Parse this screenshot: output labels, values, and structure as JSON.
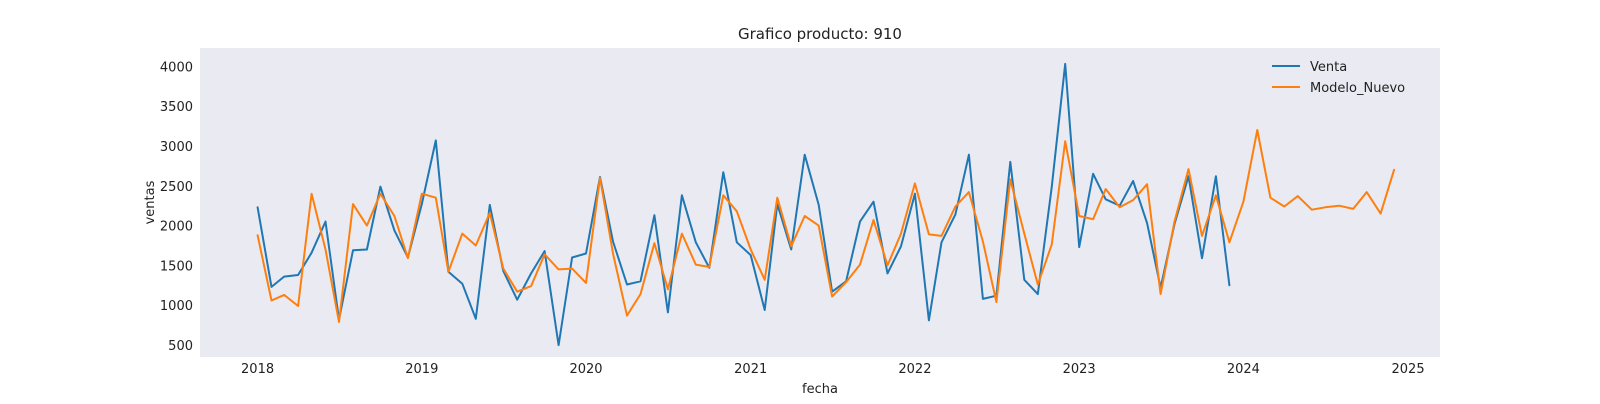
{
  "chart_data": {
    "type": "line",
    "title": "Grafico producto: 910",
    "xlabel": "fecha",
    "ylabel": "ventas",
    "xlim": [
      "2017-08-26",
      "2025-03-13"
    ],
    "ylim": [
      350,
      4230
    ],
    "yticks": [
      500,
      1000,
      1500,
      2000,
      2500,
      3000,
      3500,
      4000
    ],
    "xticks": [
      "2018-01-01",
      "2019-01-01",
      "2020-01-01",
      "2021-01-01",
      "2022-01-01",
      "2023-01-01",
      "2024-01-01",
      "2025-01-01"
    ],
    "xtick_labels": [
      "2018",
      "2019",
      "2020",
      "2021",
      "2022",
      "2023",
      "2024",
      "2025"
    ],
    "grid": false,
    "legend_position": "top-right",
    "background": "#eaeaf2",
    "series": [
      {
        "name": "Venta",
        "color": "#1f77b4",
        "dates": [
          "2018-01-01",
          "2018-02-01",
          "2018-03-01",
          "2018-04-01",
          "2018-05-01",
          "2018-06-01",
          "2018-07-01",
          "2018-08-01",
          "2018-09-01",
          "2018-10-01",
          "2018-11-01",
          "2018-12-01",
          "2019-01-01",
          "2019-02-01",
          "2019-03-01",
          "2019-04-01",
          "2019-05-01",
          "2019-06-01",
          "2019-07-01",
          "2019-08-01",
          "2019-09-01",
          "2019-10-01",
          "2019-11-01",
          "2019-12-01",
          "2020-01-01",
          "2020-02-01",
          "2020-03-01",
          "2020-04-01",
          "2020-05-01",
          "2020-06-01",
          "2020-07-01",
          "2020-08-01",
          "2020-09-01",
          "2020-10-01",
          "2020-11-01",
          "2020-12-01",
          "2021-01-01",
          "2021-02-01",
          "2021-03-01",
          "2021-04-01",
          "2021-05-01",
          "2021-06-01",
          "2021-07-01",
          "2021-08-01",
          "2021-09-01",
          "2021-10-01",
          "2021-11-01",
          "2021-12-01",
          "2022-01-01",
          "2022-02-01",
          "2022-03-01",
          "2022-04-01",
          "2022-05-01",
          "2022-06-01",
          "2022-07-01",
          "2022-08-01",
          "2022-09-01",
          "2022-10-01",
          "2022-11-01",
          "2022-12-01",
          "2023-01-01",
          "2023-02-01",
          "2023-03-01",
          "2023-04-01",
          "2023-05-01",
          "2023-06-01",
          "2023-07-01",
          "2023-08-01",
          "2023-09-01",
          "2023-10-01",
          "2023-11-01",
          "2023-12-01"
        ],
        "values": [
          2230,
          1230,
          1360,
          1380,
          1660,
          2050,
          820,
          1690,
          1700,
          2490,
          1940,
          1600,
          2270,
          3070,
          1420,
          1270,
          830,
          2260,
          1430,
          1070,
          1400,
          1680,
          500,
          1600,
          1650,
          2610,
          1800,
          1260,
          1300,
          2130,
          910,
          2380,
          1790,
          1470,
          2670,
          1790,
          1630,
          940,
          2270,
          1700,
          2890,
          2260,
          1170,
          1300,
          2050,
          2300,
          1400,
          1740,
          2400,
          810,
          1790,
          2140,
          2890,
          1080,
          1120,
          2800,
          1320,
          1140,
          2480,
          4030,
          1730,
          2650,
          2330,
          2250,
          2560,
          2030,
          1220,
          2020,
          2620,
          1590,
          2620,
          1250
        ]
      },
      {
        "name": "Modelo_Nuevo",
        "color": "#ff7f0e",
        "dates": [
          "2018-01-01",
          "2018-02-01",
          "2018-03-01",
          "2018-04-01",
          "2018-05-01",
          "2018-06-01",
          "2018-07-01",
          "2018-08-01",
          "2018-09-01",
          "2018-10-01",
          "2018-11-01",
          "2018-12-01",
          "2019-01-01",
          "2019-02-01",
          "2019-03-01",
          "2019-04-01",
          "2019-05-01",
          "2019-06-01",
          "2019-07-01",
          "2019-08-01",
          "2019-09-01",
          "2019-10-01",
          "2019-11-01",
          "2019-12-01",
          "2020-01-01",
          "2020-02-01",
          "2020-03-01",
          "2020-04-01",
          "2020-05-01",
          "2020-06-01",
          "2020-07-01",
          "2020-08-01",
          "2020-09-01",
          "2020-10-01",
          "2020-11-01",
          "2020-12-01",
          "2021-01-01",
          "2021-02-01",
          "2021-03-01",
          "2021-04-01",
          "2021-05-01",
          "2021-06-01",
          "2021-07-01",
          "2021-08-01",
          "2021-09-01",
          "2021-10-01",
          "2021-11-01",
          "2021-12-01",
          "2022-01-01",
          "2022-02-01",
          "2022-03-01",
          "2022-04-01",
          "2022-05-01",
          "2022-06-01",
          "2022-07-01",
          "2022-08-01",
          "2022-09-01",
          "2022-10-01",
          "2022-11-01",
          "2022-12-01",
          "2023-01-01",
          "2023-02-01",
          "2023-03-01",
          "2023-04-01",
          "2023-05-01",
          "2023-06-01",
          "2023-07-01",
          "2023-08-01",
          "2023-09-01",
          "2023-10-01",
          "2023-11-01",
          "2023-12-01",
          "2024-01-01",
          "2024-02-01",
          "2024-03-01",
          "2024-04-01",
          "2024-05-01",
          "2024-06-01",
          "2024-07-01",
          "2024-08-01",
          "2024-09-01",
          "2024-10-01",
          "2024-11-01",
          "2024-12-01"
        ],
        "values": [
          1880,
          1060,
          1130,
          990,
          2400,
          1700,
          790,
          2270,
          2000,
          2400,
          2120,
          1590,
          2400,
          2350,
          1420,
          1900,
          1750,
          2160,
          1460,
          1170,
          1240,
          1640,
          1450,
          1460,
          1280,
          2600,
          1650,
          870,
          1140,
          1780,
          1200,
          1900,
          1510,
          1480,
          2380,
          2180,
          1700,
          1320,
          2350,
          1740,
          2120,
          2000,
          1110,
          1290,
          1510,
          2070,
          1500,
          1900,
          2530,
          1890,
          1870,
          2240,
          2420,
          1800,
          1040,
          2580,
          1900,
          1260,
          1760,
          3060,
          2120,
          2080,
          2460,
          2230,
          2320,
          2520,
          1140,
          2050,
          2710,
          1870,
          2380,
          1790,
          2300,
          3200,
          2350,
          2240,
          2370,
          2200,
          2230,
          2250,
          2210,
          2420,
          2150,
          2700
        ]
      }
    ]
  }
}
